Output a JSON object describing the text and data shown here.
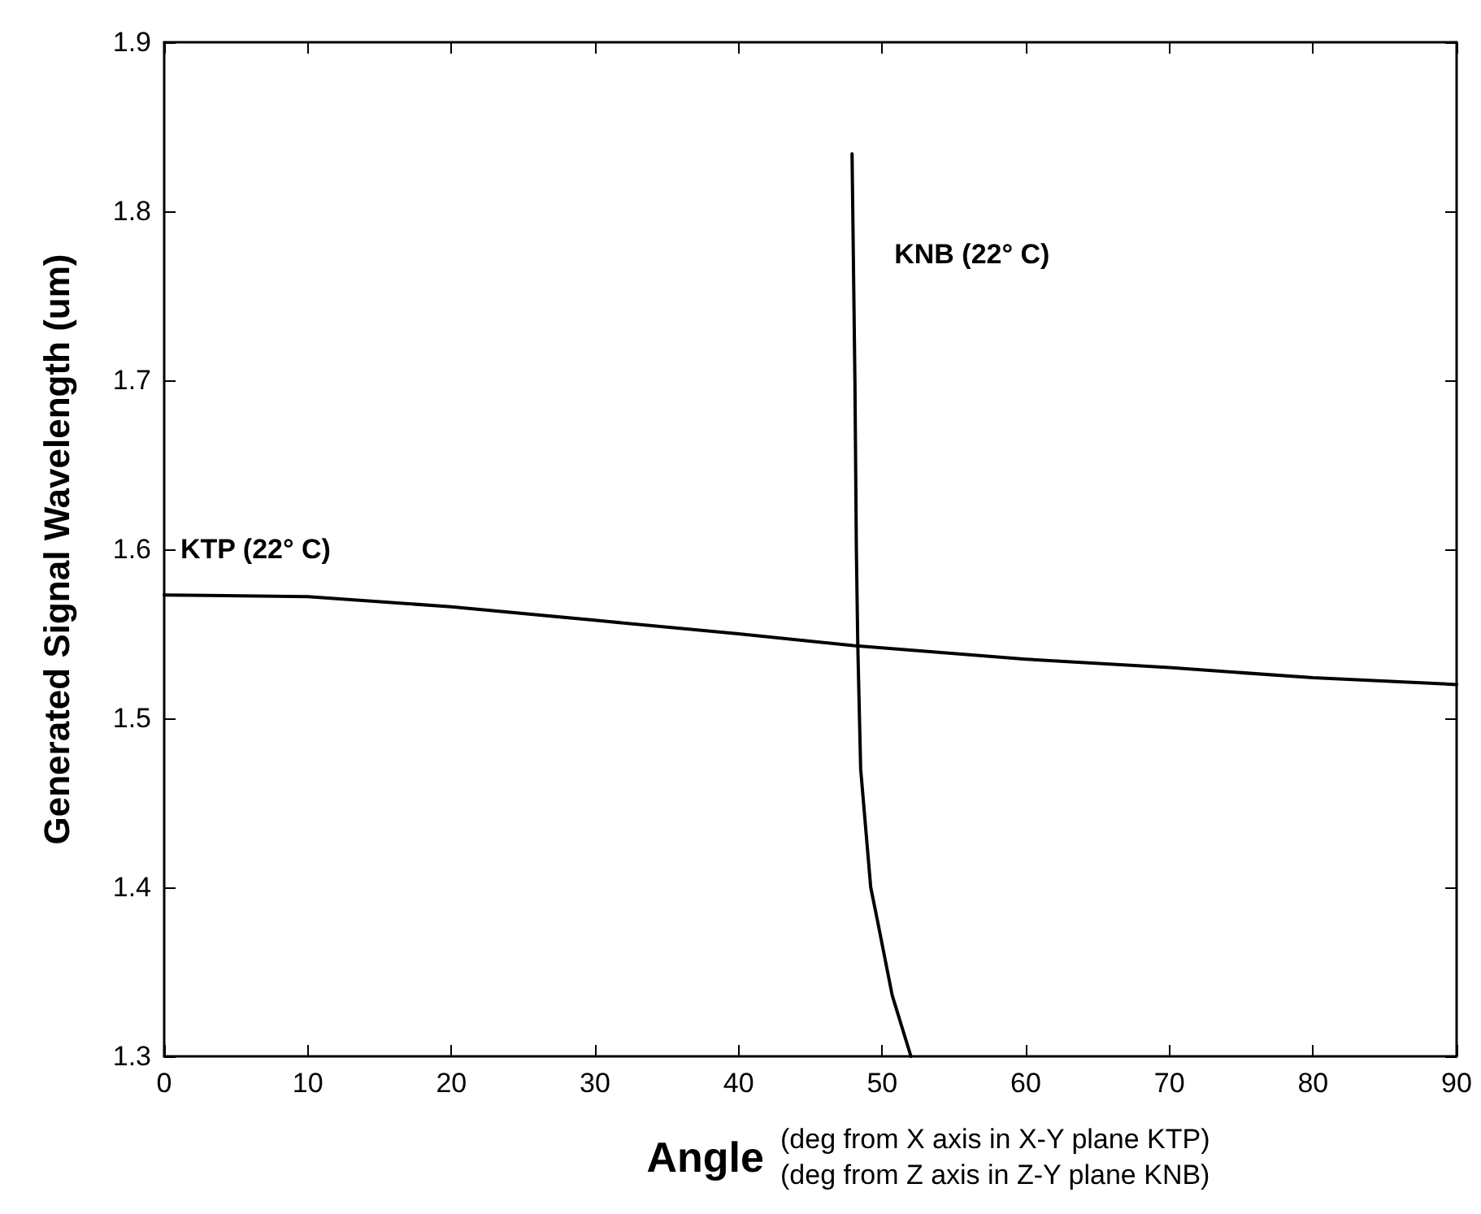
{
  "chart_data": {
    "type": "line",
    "xlabel": "Angle",
    "ylabel": "Generated Signal Wavelength (um)",
    "xlim": [
      0,
      90
    ],
    "xticks": [
      0,
      10,
      20,
      30,
      40,
      50,
      60,
      70,
      80,
      90
    ],
    "ylim": [
      1.3,
      1.9
    ],
    "yticks": [
      1.3,
      1.4,
      1.5,
      1.6,
      1.7,
      1.8,
      1.9
    ],
    "grid": false,
    "marker": "none",
    "line_style": "solid",
    "series": [
      {
        "name": "KTP (22° C)",
        "color": "#000000",
        "x": [
          0,
          10,
          20,
          30,
          40,
          48,
          60,
          70,
          80,
          90
        ],
        "values": [
          1.573,
          1.572,
          1.566,
          1.558,
          1.55,
          1.543,
          1.535,
          1.53,
          1.524,
          1.52
        ]
      },
      {
        "name": "KNB (22° C)",
        "color": "#000000",
        "x": [
          47.9,
          48.1,
          48.2,
          48.3,
          48.5,
          49.2,
          49.7,
          50.7,
          52
        ],
        "values": [
          1.834,
          1.7,
          1.6,
          1.543,
          1.47,
          1.4,
          1.379,
          1.336,
          1.3
        ]
      }
    ],
    "annotations": [
      "(deg from X axis in X-Y plane KTP)",
      "(deg from Z axis in Z-Y plane KNB)"
    ]
  }
}
